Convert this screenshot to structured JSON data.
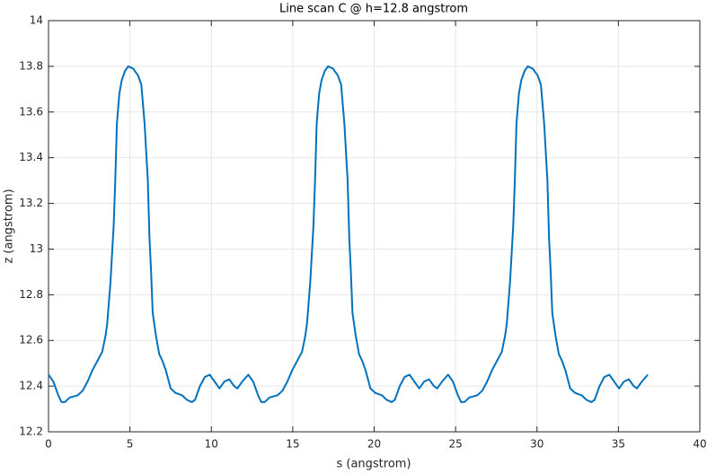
{
  "chart_data": {
    "type": "line",
    "title": "Line scan C @ h=12.8 angstrom",
    "xlabel": "s (angstrom)",
    "ylabel": "z (angstrom)",
    "color": "#0072bd",
    "grid": true,
    "xlim": [
      0,
      40
    ],
    "xticks": [
      0,
      5,
      10,
      15,
      20,
      25,
      30,
      35,
      40
    ],
    "ylim": [
      12.2,
      14
    ],
    "yticks": [
      12.2,
      12.4,
      12.6,
      12.8,
      13,
      13.2,
      13.4,
      13.6,
      13.8,
      14
    ],
    "x": [
      0,
      0.3,
      0.6,
      0.8,
      1.0,
      1.3,
      1.8,
      2.1,
      2.4,
      2.7,
      3.0,
      3.3,
      3.5,
      3.6,
      3.8,
      4.0,
      4.1,
      4.2,
      4.35,
      4.5,
      4.7,
      4.9,
      5.2,
      5.5,
      5.7,
      5.9,
      6.1,
      6.2,
      6.3,
      6.4,
      6.6,
      6.8,
      7.0,
      7.2,
      7.5,
      7.8,
      8.2,
      8.5,
      8.8,
      9.0,
      9.3,
      9.6,
      9.9,
      10.2,
      10.5,
      10.8,
      11.1,
      11.4,
      11.6,
      11.9,
      12.27,
      12.57,
      12.87,
      13.07,
      13.27,
      13.57,
      14.07,
      14.37,
      14.67,
      14.97,
      15.27,
      15.57,
      15.77,
      15.87,
      16.07,
      16.27,
      16.37,
      16.47,
      16.62,
      16.77,
      16.97,
      17.17,
      17.47,
      17.77,
      17.97,
      18.17,
      18.37,
      18.47,
      18.57,
      18.67,
      18.87,
      19.07,
      19.27,
      19.47,
      19.77,
      20.07,
      20.47,
      20.77,
      21.07,
      21.27,
      21.57,
      21.87,
      22.17,
      22.47,
      22.77,
      23.07,
      23.37,
      23.67,
      23.87,
      24.17,
      24.54,
      24.84,
      25.14,
      25.34,
      25.54,
      25.84,
      26.34,
      26.64,
      26.94,
      27.24,
      27.54,
      27.84,
      28.04,
      28.14,
      28.34,
      28.54,
      28.64,
      28.74,
      28.89,
      29.04,
      29.24,
      29.44,
      29.74,
      30.04,
      30.24,
      30.44,
      30.64,
      30.74,
      30.84,
      30.94,
      31.14,
      31.34,
      31.54,
      31.74,
      32.04,
      32.34,
      32.74,
      33.04,
      33.34,
      33.54,
      33.84,
      34.14,
      34.44,
      34.74,
      35.04,
      35.34,
      35.64,
      35.94,
      36.14,
      36.44,
      36.81
    ],
    "values": [
      12.45,
      12.42,
      12.36,
      12.33,
      12.33,
      12.35,
      12.36,
      12.38,
      12.42,
      12.47,
      12.51,
      12.55,
      12.62,
      12.67,
      12.85,
      13.1,
      13.3,
      13.55,
      13.68,
      13.74,
      13.78,
      13.8,
      13.79,
      13.76,
      13.72,
      13.55,
      13.3,
      13.05,
      12.9,
      12.72,
      12.62,
      12.54,
      12.51,
      12.47,
      12.39,
      12.37,
      12.36,
      12.34,
      12.33,
      12.34,
      12.4,
      12.44,
      12.45,
      12.42,
      12.39,
      12.42,
      12.43,
      12.4,
      12.39,
      12.42,
      12.45,
      12.42,
      12.36,
      12.33,
      12.33,
      12.35,
      12.36,
      12.38,
      12.42,
      12.47,
      12.51,
      12.55,
      12.62,
      12.67,
      12.85,
      13.1,
      13.3,
      13.55,
      13.68,
      13.74,
      13.78,
      13.8,
      13.79,
      13.76,
      13.72,
      13.55,
      13.3,
      13.05,
      12.9,
      12.72,
      12.62,
      12.54,
      12.51,
      12.47,
      12.39,
      12.37,
      12.36,
      12.34,
      12.33,
      12.34,
      12.4,
      12.44,
      12.45,
      12.42,
      12.39,
      12.42,
      12.43,
      12.4,
      12.39,
      12.42,
      12.45,
      12.42,
      12.36,
      12.33,
      12.33,
      12.35,
      12.36,
      12.38,
      12.42,
      12.47,
      12.51,
      12.55,
      12.62,
      12.67,
      12.85,
      13.1,
      13.3,
      13.55,
      13.68,
      13.74,
      13.78,
      13.8,
      13.79,
      13.76,
      13.72,
      13.55,
      13.3,
      13.05,
      12.9,
      12.72,
      12.62,
      12.54,
      12.51,
      12.47,
      12.39,
      12.37,
      12.36,
      12.34,
      12.33,
      12.34,
      12.4,
      12.44,
      12.45,
      12.42,
      12.39,
      12.42,
      12.43,
      12.4,
      12.39,
      12.42,
      12.45
    ]
  }
}
